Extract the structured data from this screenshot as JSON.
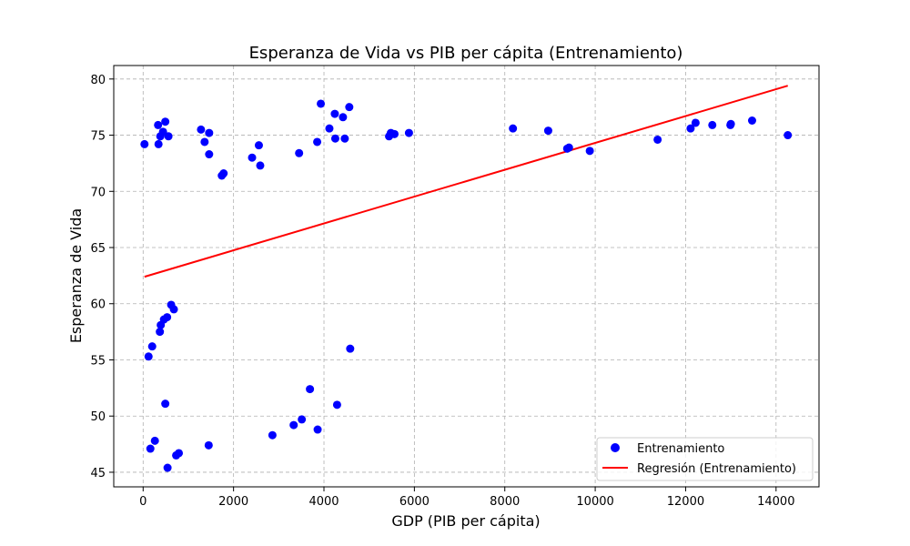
{
  "chart_data": {
    "type": "scatter",
    "title": "Esperanza de Vida vs PIB per cápita (Entrenamiento)",
    "xlabel": "GDP (PIB per cápita)",
    "ylabel": "Esperanza de Vida",
    "xlim": [
      -650,
      14950
    ],
    "ylim": [
      43.7,
      81.2
    ],
    "xticks": [
      0,
      2000,
      4000,
      6000,
      8000,
      10000,
      12000,
      14000
    ],
    "yticks": [
      45,
      50,
      55,
      60,
      65,
      70,
      75,
      80
    ],
    "grid": true,
    "legend_position": "bottom-right",
    "colors": {
      "points": "#0000ff",
      "regression": "#ff0000",
      "grid": "#b0b0b0"
    },
    "series": [
      {
        "name": "Entrenamiento",
        "kind": "scatter",
        "points": [
          {
            "x": 30,
            "y": 74.2
          },
          {
            "x": 330,
            "y": 75.9
          },
          {
            "x": 490,
            "y": 76.2
          },
          {
            "x": 440,
            "y": 75.3
          },
          {
            "x": 380,
            "y": 74.9
          },
          {
            "x": 560,
            "y": 74.9
          },
          {
            "x": 340,
            "y": 74.2
          },
          {
            "x": 1280,
            "y": 75.5
          },
          {
            "x": 1460,
            "y": 75.2
          },
          {
            "x": 1360,
            "y": 74.4
          },
          {
            "x": 1460,
            "y": 73.3
          },
          {
            "x": 1740,
            "y": 71.4
          },
          {
            "x": 1780,
            "y": 71.6
          },
          {
            "x": 2410,
            "y": 73.0
          },
          {
            "x": 2560,
            "y": 74.1
          },
          {
            "x": 2590,
            "y": 72.3
          },
          {
            "x": 3450,
            "y": 73.4
          },
          {
            "x": 3850,
            "y": 74.4
          },
          {
            "x": 3930,
            "y": 77.8
          },
          {
            "x": 4120,
            "y": 75.6
          },
          {
            "x": 4240,
            "y": 76.9
          },
          {
            "x": 4250,
            "y": 74.7
          },
          {
            "x": 4420,
            "y": 76.6
          },
          {
            "x": 4460,
            "y": 74.7
          },
          {
            "x": 4560,
            "y": 77.5
          },
          {
            "x": 5440,
            "y": 74.9
          },
          {
            "x": 5480,
            "y": 75.2
          },
          {
            "x": 5560,
            "y": 75.1
          },
          {
            "x": 5880,
            "y": 75.2
          },
          {
            "x": 8180,
            "y": 75.6
          },
          {
            "x": 8960,
            "y": 75.4
          },
          {
            "x": 9380,
            "y": 73.8
          },
          {
            "x": 9420,
            "y": 73.9
          },
          {
            "x": 9880,
            "y": 73.6
          },
          {
            "x": 11380,
            "y": 74.6
          },
          {
            "x": 12110,
            "y": 75.6
          },
          {
            "x": 12220,
            "y": 76.1
          },
          {
            "x": 12590,
            "y": 75.9
          },
          {
            "x": 12990,
            "y": 75.9
          },
          {
            "x": 13000,
            "y": 76.0
          },
          {
            "x": 13470,
            "y": 76.3
          },
          {
            "x": 14260,
            "y": 75.0
          },
          {
            "x": 120,
            "y": 55.3
          },
          {
            "x": 200,
            "y": 56.2
          },
          {
            "x": 390,
            "y": 58.1
          },
          {
            "x": 370,
            "y": 57.5
          },
          {
            "x": 460,
            "y": 58.6
          },
          {
            "x": 530,
            "y": 58.8
          },
          {
            "x": 620,
            "y": 59.9
          },
          {
            "x": 680,
            "y": 59.5
          },
          {
            "x": 490,
            "y": 51.1
          },
          {
            "x": 160,
            "y": 47.1
          },
          {
            "x": 260,
            "y": 47.8
          },
          {
            "x": 540,
            "y": 45.4
          },
          {
            "x": 730,
            "y": 46.5
          },
          {
            "x": 790,
            "y": 46.7
          },
          {
            "x": 1450,
            "y": 47.4
          },
          {
            "x": 2860,
            "y": 48.3
          },
          {
            "x": 3330,
            "y": 49.2
          },
          {
            "x": 3510,
            "y": 49.7
          },
          {
            "x": 3690,
            "y": 52.4
          },
          {
            "x": 3860,
            "y": 48.8
          },
          {
            "x": 4290,
            "y": 51.0
          },
          {
            "x": 4580,
            "y": 56.0
          }
        ]
      },
      {
        "name": "Regresión (Entrenamiento)",
        "kind": "line",
        "points": [
          {
            "x": 30,
            "y": 62.4
          },
          {
            "x": 14260,
            "y": 79.4
          }
        ]
      }
    ]
  }
}
